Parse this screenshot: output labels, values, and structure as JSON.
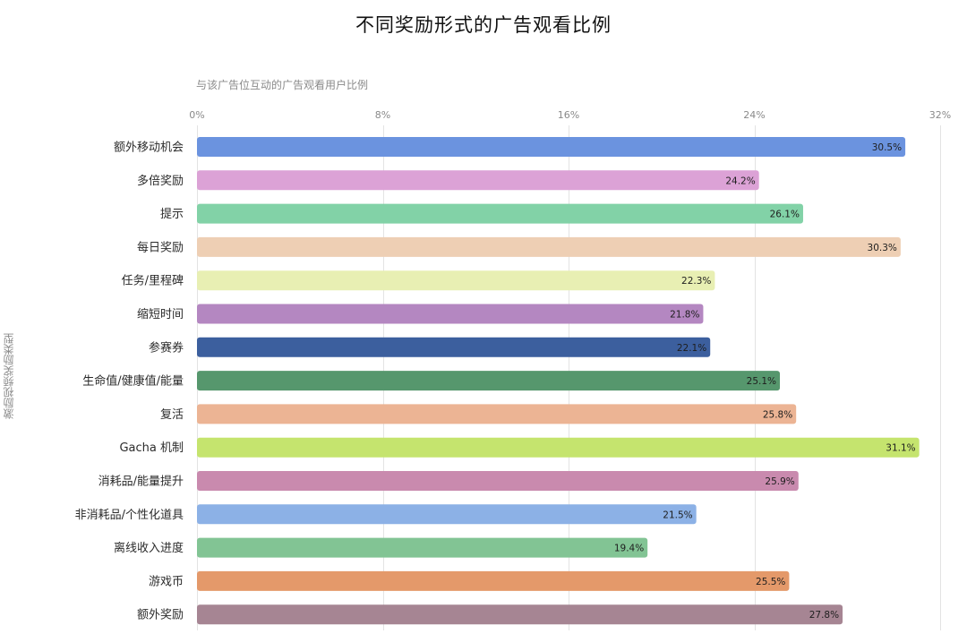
{
  "chart_data": {
    "type": "bar",
    "orientation": "horizontal",
    "title": "不同奖励形式的广告观看比例",
    "xlabel": "与该广告位互动的广告观看用户比例",
    "ylabel": "激励视频奖励类型",
    "xlim": [
      0,
      32
    ],
    "x_ticks": [
      0,
      8,
      16,
      24,
      32
    ],
    "x_tick_labels": [
      "0%",
      "8%",
      "16%",
      "24%",
      "32%"
    ],
    "grid": true,
    "value_suffix": "%",
    "categories": [
      "额外移动机会",
      "多倍奖励",
      "提示",
      "每日奖励",
      "任务/里程碑",
      "缩短时间",
      "参赛券",
      "生命值/健康值/能量",
      "复活",
      "Gacha 机制",
      "消耗品/能量提升",
      "非消耗品/个性化道具",
      "离线收入进度",
      "游戏币",
      "额外奖励"
    ],
    "values": [
      30.5,
      24.2,
      26.1,
      30.3,
      22.3,
      21.8,
      22.1,
      25.1,
      25.8,
      31.1,
      25.9,
      21.5,
      19.4,
      25.5,
      27.8
    ],
    "colors": [
      "#6b93df",
      "#dca2d6",
      "#82d2a7",
      "#eecfb4",
      "#e8efb3",
      "#b487c1",
      "#3c5f9e",
      "#56976d",
      "#ecb494",
      "#c5e46e",
      "#c98aae",
      "#8cb1e6",
      "#82c494",
      "#e4996a",
      "#a68593"
    ]
  }
}
